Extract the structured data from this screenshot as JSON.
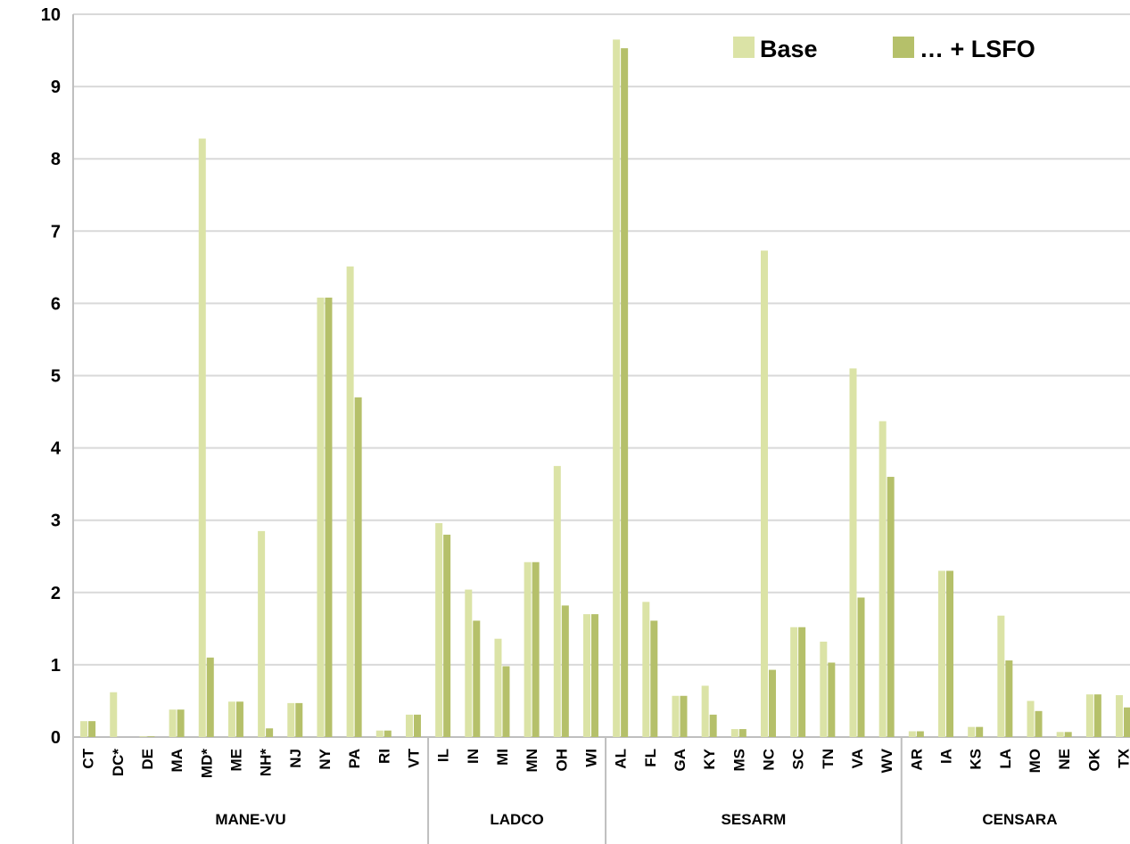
{
  "colors": {
    "base": "#dbe3a6",
    "lsfo": "#b5c06a",
    "grid": "#d9d9d9",
    "axis": "#bfbfbf"
  },
  "legend": {
    "base_label": "Base",
    "lsfo_label": "… + LSFO"
  },
  "chart_data": {
    "type": "bar",
    "title": "",
    "xlabel": "",
    "ylabel": "",
    "ylim": [
      0,
      10
    ],
    "yticks": [
      "0",
      "1",
      "2",
      "3",
      "4",
      "5",
      "6",
      "7",
      "8",
      "9",
      "10"
    ],
    "grid": true,
    "legend_position": "top-right",
    "categories": [
      "CT",
      "DC*",
      "DE",
      "MA",
      "MD*",
      "ME",
      "NH*",
      "NJ",
      "NY",
      "PA",
      "RI",
      "VT",
      "IL",
      "IN",
      "MI",
      "MN",
      "OH",
      "WI",
      "AL",
      "FL",
      "GA",
      "KY",
      "MS",
      "NC",
      "SC",
      "TN",
      "VA",
      "WV",
      "AR",
      "IA",
      "KS",
      "LA",
      "MO",
      "NE",
      "OK",
      "TX"
    ],
    "groups": [
      {
        "name": "MANE-VU",
        "count": 12
      },
      {
        "name": "LADCO",
        "count": 6
      },
      {
        "name": "SESARM",
        "count": 10
      },
      {
        "name": "CENSARA",
        "count": 8
      }
    ],
    "series": [
      {
        "name": "Base",
        "values": [
          0.22,
          0.62,
          0.01,
          0.38,
          8.28,
          0.49,
          2.85,
          0.47,
          6.08,
          6.51,
          0.09,
          0.31,
          2.96,
          2.04,
          1.36,
          2.42,
          3.75,
          1.7,
          9.65,
          1.87,
          0.57,
          0.71,
          0.11,
          6.73,
          1.52,
          1.32,
          5.1,
          4.37,
          0.08,
          2.3,
          0.14,
          1.68,
          0.5,
          0.07,
          0.59,
          0.58
        ]
      },
      {
        "name": "… + LSFO",
        "values": [
          0.22,
          0,
          0.01,
          0.38,
          1.1,
          0.49,
          0.12,
          0.47,
          6.08,
          4.7,
          0.09,
          0.31,
          2.8,
          1.61,
          0.98,
          2.42,
          1.82,
          1.7,
          9.53,
          1.61,
          0.57,
          0.31,
          0.11,
          0.93,
          1.52,
          1.03,
          1.93,
          3.6,
          0.08,
          2.3,
          0.14,
          1.06,
          0.36,
          0.07,
          0.59,
          0.41
        ]
      }
    ]
  }
}
